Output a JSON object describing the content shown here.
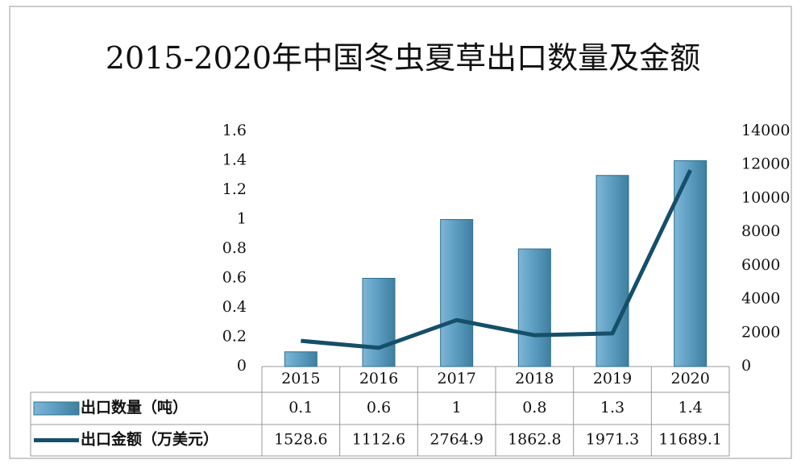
{
  "chart_data": {
    "type": "bar-line",
    "title": "2015-2020年中国冬虫夏草出口数量及金额",
    "categories": [
      "2015",
      "2016",
      "2017",
      "2018",
      "2019",
      "2020"
    ],
    "series": [
      {
        "name": "出口数量（吨）",
        "type": "bar",
        "color": "#5a9cc0",
        "values": [
          0.1,
          0.6,
          1,
          0.8,
          1.3,
          1.4
        ]
      },
      {
        "name": "出口金额（万美元）",
        "type": "line",
        "axis": "y2",
        "color": "#154f69",
        "values": [
          1528.6,
          1112.6,
          2764.9,
          1862.8,
          1971.3,
          11689.1
        ]
      }
    ],
    "ylim": [
      0,
      1.6
    ],
    "yticks": [
      0,
      0.2,
      0.4,
      0.6,
      0.8,
      1,
      1.2,
      1.4,
      1.6
    ],
    "y2lim": [
      0,
      14000
    ],
    "y2ticks": [
      0,
      2000,
      4000,
      6000,
      8000,
      10000,
      12000,
      14000
    ],
    "grid": false,
    "data_table": true
  }
}
